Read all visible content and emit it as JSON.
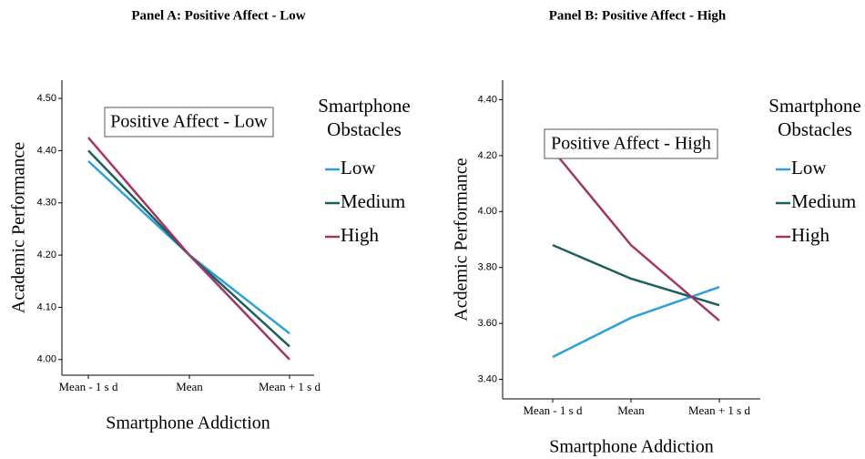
{
  "chart_data": [
    {
      "type": "line",
      "title": "Panel A: Positive Affect - Low",
      "annotation": "Positive Affect - Low",
      "x_label": "Smartphone Addiction",
      "y_label": "Academic Performance",
      "legend_title": "Smartphone Obstacles",
      "categories": [
        "Mean - 1 s d",
        "Mean",
        "Mean + 1 s d"
      ],
      "series": [
        {
          "name": "Low",
          "color": "#2e9fd8",
          "values": [
            4.38,
            4.2,
            4.05
          ]
        },
        {
          "name": "Medium",
          "color": "#1f5f5b",
          "values": [
            4.4,
            4.2,
            4.025
          ]
        },
        {
          "name": "High",
          "color": "#a23565",
          "values": [
            4.425,
            4.2,
            4.0
          ]
        }
      ],
      "ylim": [
        3.97,
        4.535
      ],
      "yticks": [
        {
          "value": 4,
          "label": "4.00"
        },
        {
          "value": 4.1,
          "label": "4.10"
        },
        {
          "value": 4.2,
          "label": "4.20"
        },
        {
          "value": 4.3,
          "label": "4.30"
        },
        {
          "value": 4.4,
          "label": "4.40"
        },
        {
          "value": 4.5,
          "label": "4.50"
        }
      ]
    },
    {
      "type": "line",
      "title": "Panel B: Positive Affect - High",
      "annotation": "Positive Affect - High",
      "x_label": "Smartphone Addiction",
      "y_label": "Acdemic Performance",
      "legend_title": "Smartphone Obstacles",
      "categories": [
        "Mean - 1 s d",
        "Mean",
        "Mean + 1 s d"
      ],
      "series": [
        {
          "name": "Low",
          "color": "#2e9fd8",
          "values": [
            3.48,
            3.62,
            3.73
          ]
        },
        {
          "name": "Medium",
          "color": "#1f5f5b",
          "values": [
            3.88,
            3.76,
            3.665
          ]
        },
        {
          "name": "High",
          "color": "#a23565",
          "values": [
            4.22,
            3.88,
            3.61
          ]
        }
      ],
      "ylim": [
        3.33,
        4.47
      ],
      "yticks": [
        {
          "value": 3.4,
          "label": "3.40"
        },
        {
          "value": 3.6,
          "label": "3.60"
        },
        {
          "value": 3.8,
          "label": "3.80"
        },
        {
          "value": 4,
          "label": "4.00"
        },
        {
          "value": 4.2,
          "label": "4.20"
        },
        {
          "value": 4.4,
          "label": "4.40"
        }
      ]
    }
  ]
}
